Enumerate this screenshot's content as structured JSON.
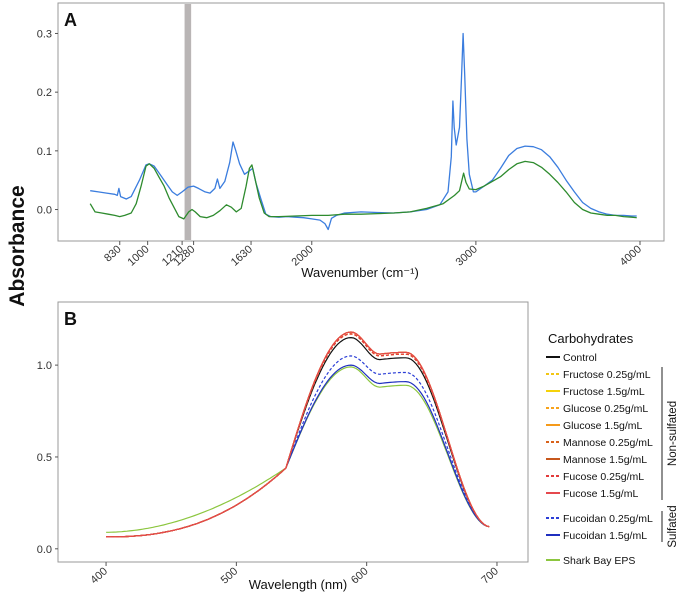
{
  "figure": {
    "ylabel": "Absorbance"
  },
  "chart_data": [
    {
      "panel": "A",
      "type": "line",
      "xlabel": "Wavenumber (cm⁻¹)",
      "xlim": [
        600,
        4000
      ],
      "ylim": [
        -0.04,
        0.34
      ],
      "x_ticks": [
        830,
        1000,
        1210,
        1280,
        1630,
        2000,
        3000,
        4000
      ],
      "x_tick_labels": [
        "830",
        "1000",
        "1210",
        "1280",
        "1630",
        "2000",
        "3000",
        "4000"
      ],
      "y_ticks": [
        0.0,
        0.1,
        0.2,
        0.3
      ],
      "y_tick_labels": [
        "0.0",
        "0.1",
        "0.2",
        "0.3"
      ],
      "highlight_band": [
        1225,
        1265
      ],
      "grid": false,
      "series": [
        {
          "color": "#3b7dde",
          "points": [
            [
              650,
              0.032
            ],
            [
              700,
              0.03
            ],
            [
              750,
              0.028
            ],
            [
              800,
              0.026
            ],
            [
              815,
              0.024
            ],
            [
              825,
              0.036
            ],
            [
              835,
              0.022
            ],
            [
              870,
              0.018
            ],
            [
              900,
              0.022
            ],
            [
              950,
              0.05
            ],
            [
              990,
              0.076
            ],
            [
              1010,
              0.078
            ],
            [
              1040,
              0.074
            ],
            [
              1080,
              0.058
            ],
            [
              1120,
              0.042
            ],
            [
              1150,
              0.03
            ],
            [
              1180,
              0.024
            ],
            [
              1210,
              0.03
            ],
            [
              1245,
              0.038
            ],
            [
              1280,
              0.04
            ],
            [
              1310,
              0.036
            ],
            [
              1350,
              0.03
            ],
            [
              1380,
              0.028
            ],
            [
              1410,
              0.036
            ],
            [
              1425,
              0.052
            ],
            [
              1440,
              0.036
            ],
            [
              1470,
              0.048
            ],
            [
              1500,
              0.08
            ],
            [
              1520,
              0.115
            ],
            [
              1535,
              0.102
            ],
            [
              1560,
              0.078
            ],
            [
              1590,
              0.06
            ],
            [
              1620,
              0.066
            ],
            [
              1640,
              0.07
            ],
            [
              1660,
              0.045
            ],
            [
              1690,
              0.018
            ],
            [
              1720,
              -0.008
            ],
            [
              1750,
              -0.012
            ],
            [
              1800,
              -0.013
            ],
            [
              1850,
              -0.012
            ],
            [
              1900,
              -0.013
            ],
            [
              1950,
              -0.014
            ],
            [
              2000,
              -0.016
            ],
            [
              2050,
              -0.018
            ],
            [
              2080,
              -0.024
            ],
            [
              2100,
              -0.034
            ],
            [
              2120,
              -0.015
            ],
            [
              2150,
              -0.01
            ],
            [
              2200,
              -0.006
            ],
            [
              2300,
              -0.004
            ],
            [
              2400,
              -0.005
            ],
            [
              2500,
              -0.006
            ],
            [
              2600,
              -0.004
            ],
            [
              2700,
              0.0
            ],
            [
              2780,
              0.008
            ],
            [
              2830,
              0.03
            ],
            [
              2850,
              0.09
            ],
            [
              2860,
              0.185
            ],
            [
              2868,
              0.14
            ],
            [
              2880,
              0.11
            ],
            [
              2900,
              0.14
            ],
            [
              2912,
              0.22
            ],
            [
              2922,
              0.3
            ],
            [
              2932,
              0.23
            ],
            [
              2945,
              0.12
            ],
            [
              2960,
              0.06
            ],
            [
              2985,
              0.03
            ],
            [
              3000,
              0.03
            ],
            [
              3050,
              0.04
            ],
            [
              3100,
              0.05
            ],
            [
              3150,
              0.07
            ],
            [
              3200,
              0.092
            ],
            [
              3250,
              0.104
            ],
            [
              3300,
              0.108
            ],
            [
              3350,
              0.107
            ],
            [
              3400,
              0.102
            ],
            [
              3450,
              0.09
            ],
            [
              3500,
              0.072
            ],
            [
              3550,
              0.05
            ],
            [
              3600,
              0.03
            ],
            [
              3650,
              0.012
            ],
            [
              3700,
              0.002
            ],
            [
              3750,
              -0.004
            ],
            [
              3800,
              -0.008
            ],
            [
              3850,
              -0.01
            ],
            [
              3900,
              -0.01
            ],
            [
              3950,
              -0.011
            ],
            [
              3980,
              -0.011
            ]
          ]
        },
        {
          "color": "#2e8b2e",
          "points": [
            [
              650,
              0.01
            ],
            [
              680,
              -0.004
            ],
            [
              720,
              -0.006
            ],
            [
              760,
              -0.008
            ],
            [
              800,
              -0.01
            ],
            [
              830,
              -0.012
            ],
            [
              860,
              -0.01
            ],
            [
              900,
              -0.006
            ],
            [
              930,
              0.01
            ],
            [
              960,
              0.04
            ],
            [
              990,
              0.074
            ],
            [
              1010,
              0.078
            ],
            [
              1040,
              0.07
            ],
            [
              1070,
              0.055
            ],
            [
              1100,
              0.04
            ],
            [
              1130,
              0.02
            ],
            [
              1160,
              0.004
            ],
            [
              1190,
              -0.012
            ],
            [
              1220,
              -0.016
            ],
            [
              1250,
              -0.004
            ],
            [
              1270,
              0.0
            ],
            [
              1290,
              -0.004
            ],
            [
              1320,
              -0.012
            ],
            [
              1360,
              -0.014
            ],
            [
              1400,
              -0.01
            ],
            [
              1440,
              -0.002
            ],
            [
              1480,
              0.008
            ],
            [
              1510,
              0.004
            ],
            [
              1540,
              -0.004
            ],
            [
              1570,
              0.002
            ],
            [
              1600,
              0.04
            ],
            [
              1620,
              0.07
            ],
            [
              1635,
              0.076
            ],
            [
              1650,
              0.058
            ],
            [
              1680,
              0.02
            ],
            [
              1710,
              -0.006
            ],
            [
              1740,
              -0.012
            ],
            [
              1800,
              -0.012
            ],
            [
              1900,
              -0.011
            ],
            [
              2000,
              -0.01
            ],
            [
              2100,
              -0.01
            ],
            [
              2200,
              -0.008
            ],
            [
              2300,
              -0.008
            ],
            [
              2400,
              -0.007
            ],
            [
              2500,
              -0.006
            ],
            [
              2600,
              -0.004
            ],
            [
              2700,
              0.002
            ],
            [
              2800,
              0.01
            ],
            [
              2870,
              0.024
            ],
            [
              2900,
              0.032
            ],
            [
              2925,
              0.062
            ],
            [
              2940,
              0.046
            ],
            [
              2960,
              0.035
            ],
            [
              3000,
              0.034
            ],
            [
              3050,
              0.04
            ],
            [
              3100,
              0.048
            ],
            [
              3150,
              0.056
            ],
            [
              3200,
              0.068
            ],
            [
              3250,
              0.078
            ],
            [
              3300,
              0.082
            ],
            [
              3350,
              0.08
            ],
            [
              3400,
              0.072
            ],
            [
              3450,
              0.06
            ],
            [
              3500,
              0.046
            ],
            [
              3550,
              0.03
            ],
            [
              3600,
              0.012
            ],
            [
              3650,
              0.0
            ],
            [
              3700,
              -0.006
            ],
            [
              3750,
              -0.008
            ],
            [
              3800,
              -0.01
            ],
            [
              3850,
              -0.01
            ],
            [
              3900,
              -0.012
            ],
            [
              3950,
              -0.013
            ],
            [
              3980,
              -0.014
            ]
          ]
        }
      ]
    },
    {
      "panel": "B",
      "type": "line",
      "xlabel": "Wavelength (nm)",
      "xlim": [
        380,
        710
      ],
      "ylim": [
        -0.05,
        1.3
      ],
      "x_ticks": [
        400,
        500,
        600,
        700
      ],
      "x_tick_labels": [
        "400",
        "500",
        "600",
        "700"
      ],
      "y_ticks": [
        0.0,
        0.5,
        1.0
      ],
      "y_tick_labels": [
        "0.0",
        "0.5",
        "1.0"
      ],
      "grid": false,
      "legend": {
        "title": "Carbohydrates",
        "placement": "right",
        "groups": [
          {
            "label": "Non-sulfated",
            "from": 1,
            "to": 8
          },
          {
            "label": "Sulfated",
            "from": 9,
            "to": 10
          }
        ]
      },
      "series": [
        {
          "name": "Control",
          "color": "#111111",
          "dash": "solid",
          "peak": 1.15,
          "shoulder": 1.04
        },
        {
          "name": "Fructose 0.25g/mL",
          "color": "#f2c614",
          "dash": "dashed",
          "peak": 1.17,
          "shoulder": 1.06
        },
        {
          "name": "Fructose 1.5g/mL",
          "color": "#f5d20a",
          "dash": "solid",
          "peak": 1.18,
          "shoulder": 1.07
        },
        {
          "name": "Glucose 0.25g/mL",
          "color": "#f7a21b",
          "dash": "dashed",
          "peak": 1.17,
          "shoulder": 1.06
        },
        {
          "name": "Glucose 1.5g/mL",
          "color": "#f59a1a",
          "dash": "solid",
          "peak": 1.18,
          "shoulder": 1.07
        },
        {
          "name": "Mannose 0.25g/mL",
          "color": "#d9621a",
          "dash": "dashed",
          "peak": 1.17,
          "shoulder": 1.06
        },
        {
          "name": "Mannose 1.5g/mL",
          "color": "#c7571c",
          "dash": "solid",
          "peak": 1.18,
          "shoulder": 1.07
        },
        {
          "name": "Fucose 0.25g/mL",
          "color": "#e23b3b",
          "dash": "dashed",
          "peak": 1.17,
          "shoulder": 1.06
        },
        {
          "name": "Fucose 1.5g/mL",
          "color": "#e5484d",
          "dash": "solid",
          "peak": 1.18,
          "shoulder": 1.07
        },
        {
          "name": "Fucoidan 0.25g/mL",
          "color": "#2b3ed6",
          "dash": "dashed",
          "peak": 1.05,
          "shoulder": 0.96
        },
        {
          "name": "Fucoidan 1.5g/mL",
          "color": "#1f2fbf",
          "dash": "solid",
          "peak": 1.0,
          "shoulder": 0.91
        },
        {
          "name": "Shark Bay EPS",
          "color": "#8cc63f",
          "dash": "solid",
          "peak": 0.99,
          "shoulder": 0.89
        }
      ]
    }
  ]
}
